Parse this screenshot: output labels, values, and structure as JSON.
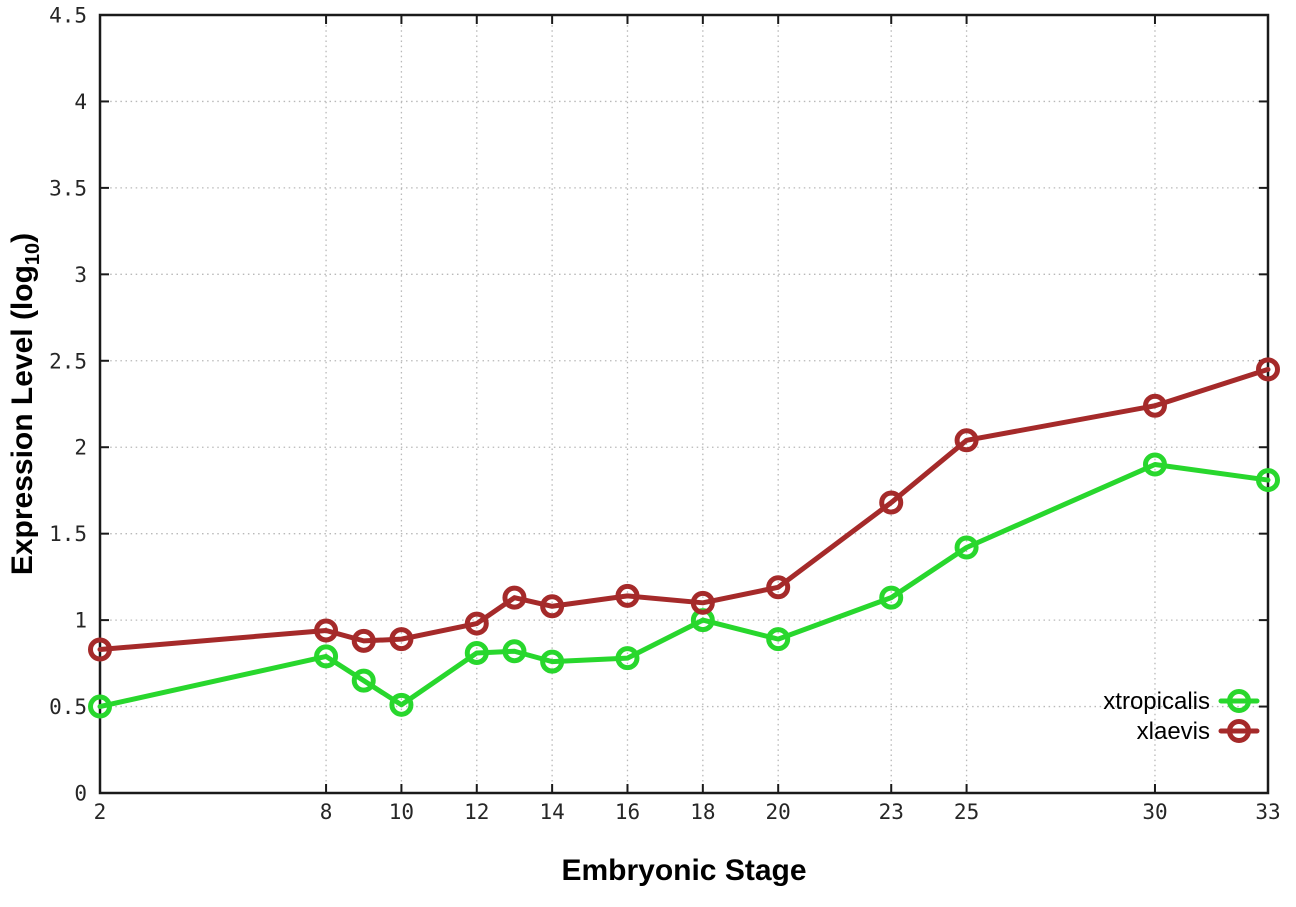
{
  "chart_data": {
    "type": "line",
    "title": "",
    "xlabel": "Embryonic Stage",
    "ylabel": "Expression Level (log10)",
    "ylabel_main": "Expression Level (log",
    "ylabel_sub": "10",
    "ylabel_close": ")",
    "x": [
      2,
      8,
      9,
      10,
      12,
      13,
      14,
      16,
      18,
      20,
      23,
      25,
      30,
      33
    ],
    "x_ticks": [
      2,
      8,
      10,
      12,
      14,
      16,
      18,
      20,
      23,
      25,
      30,
      33
    ],
    "y_ticks": [
      0,
      0.5,
      1,
      1.5,
      2,
      2.5,
      3,
      3.5,
      4,
      4.5
    ],
    "xlim": [
      2,
      33
    ],
    "ylim": [
      0,
      4.5
    ],
    "grid": true,
    "legend_position": "inside-bottom-right",
    "series": [
      {
        "name": "xtropicalis",
        "color": "#28d72d",
        "values": [
          0.5,
          0.79,
          0.65,
          0.51,
          0.81,
          0.82,
          0.76,
          0.78,
          1.0,
          0.89,
          1.13,
          1.42,
          1.9,
          1.81
        ]
      },
      {
        "name": "xlaevis",
        "color": "#a52a2a",
        "values": [
          0.83,
          0.94,
          0.88,
          0.89,
          0.98,
          1.13,
          1.08,
          1.14,
          1.1,
          1.19,
          1.68,
          2.04,
          2.24,
          2.45
        ]
      }
    ],
    "colors": {
      "axis": "#1a1a1a",
      "grid": "#b8b8b8",
      "tick_text": "#262626",
      "label_text": "#000000",
      "background": "#ffffff"
    }
  }
}
